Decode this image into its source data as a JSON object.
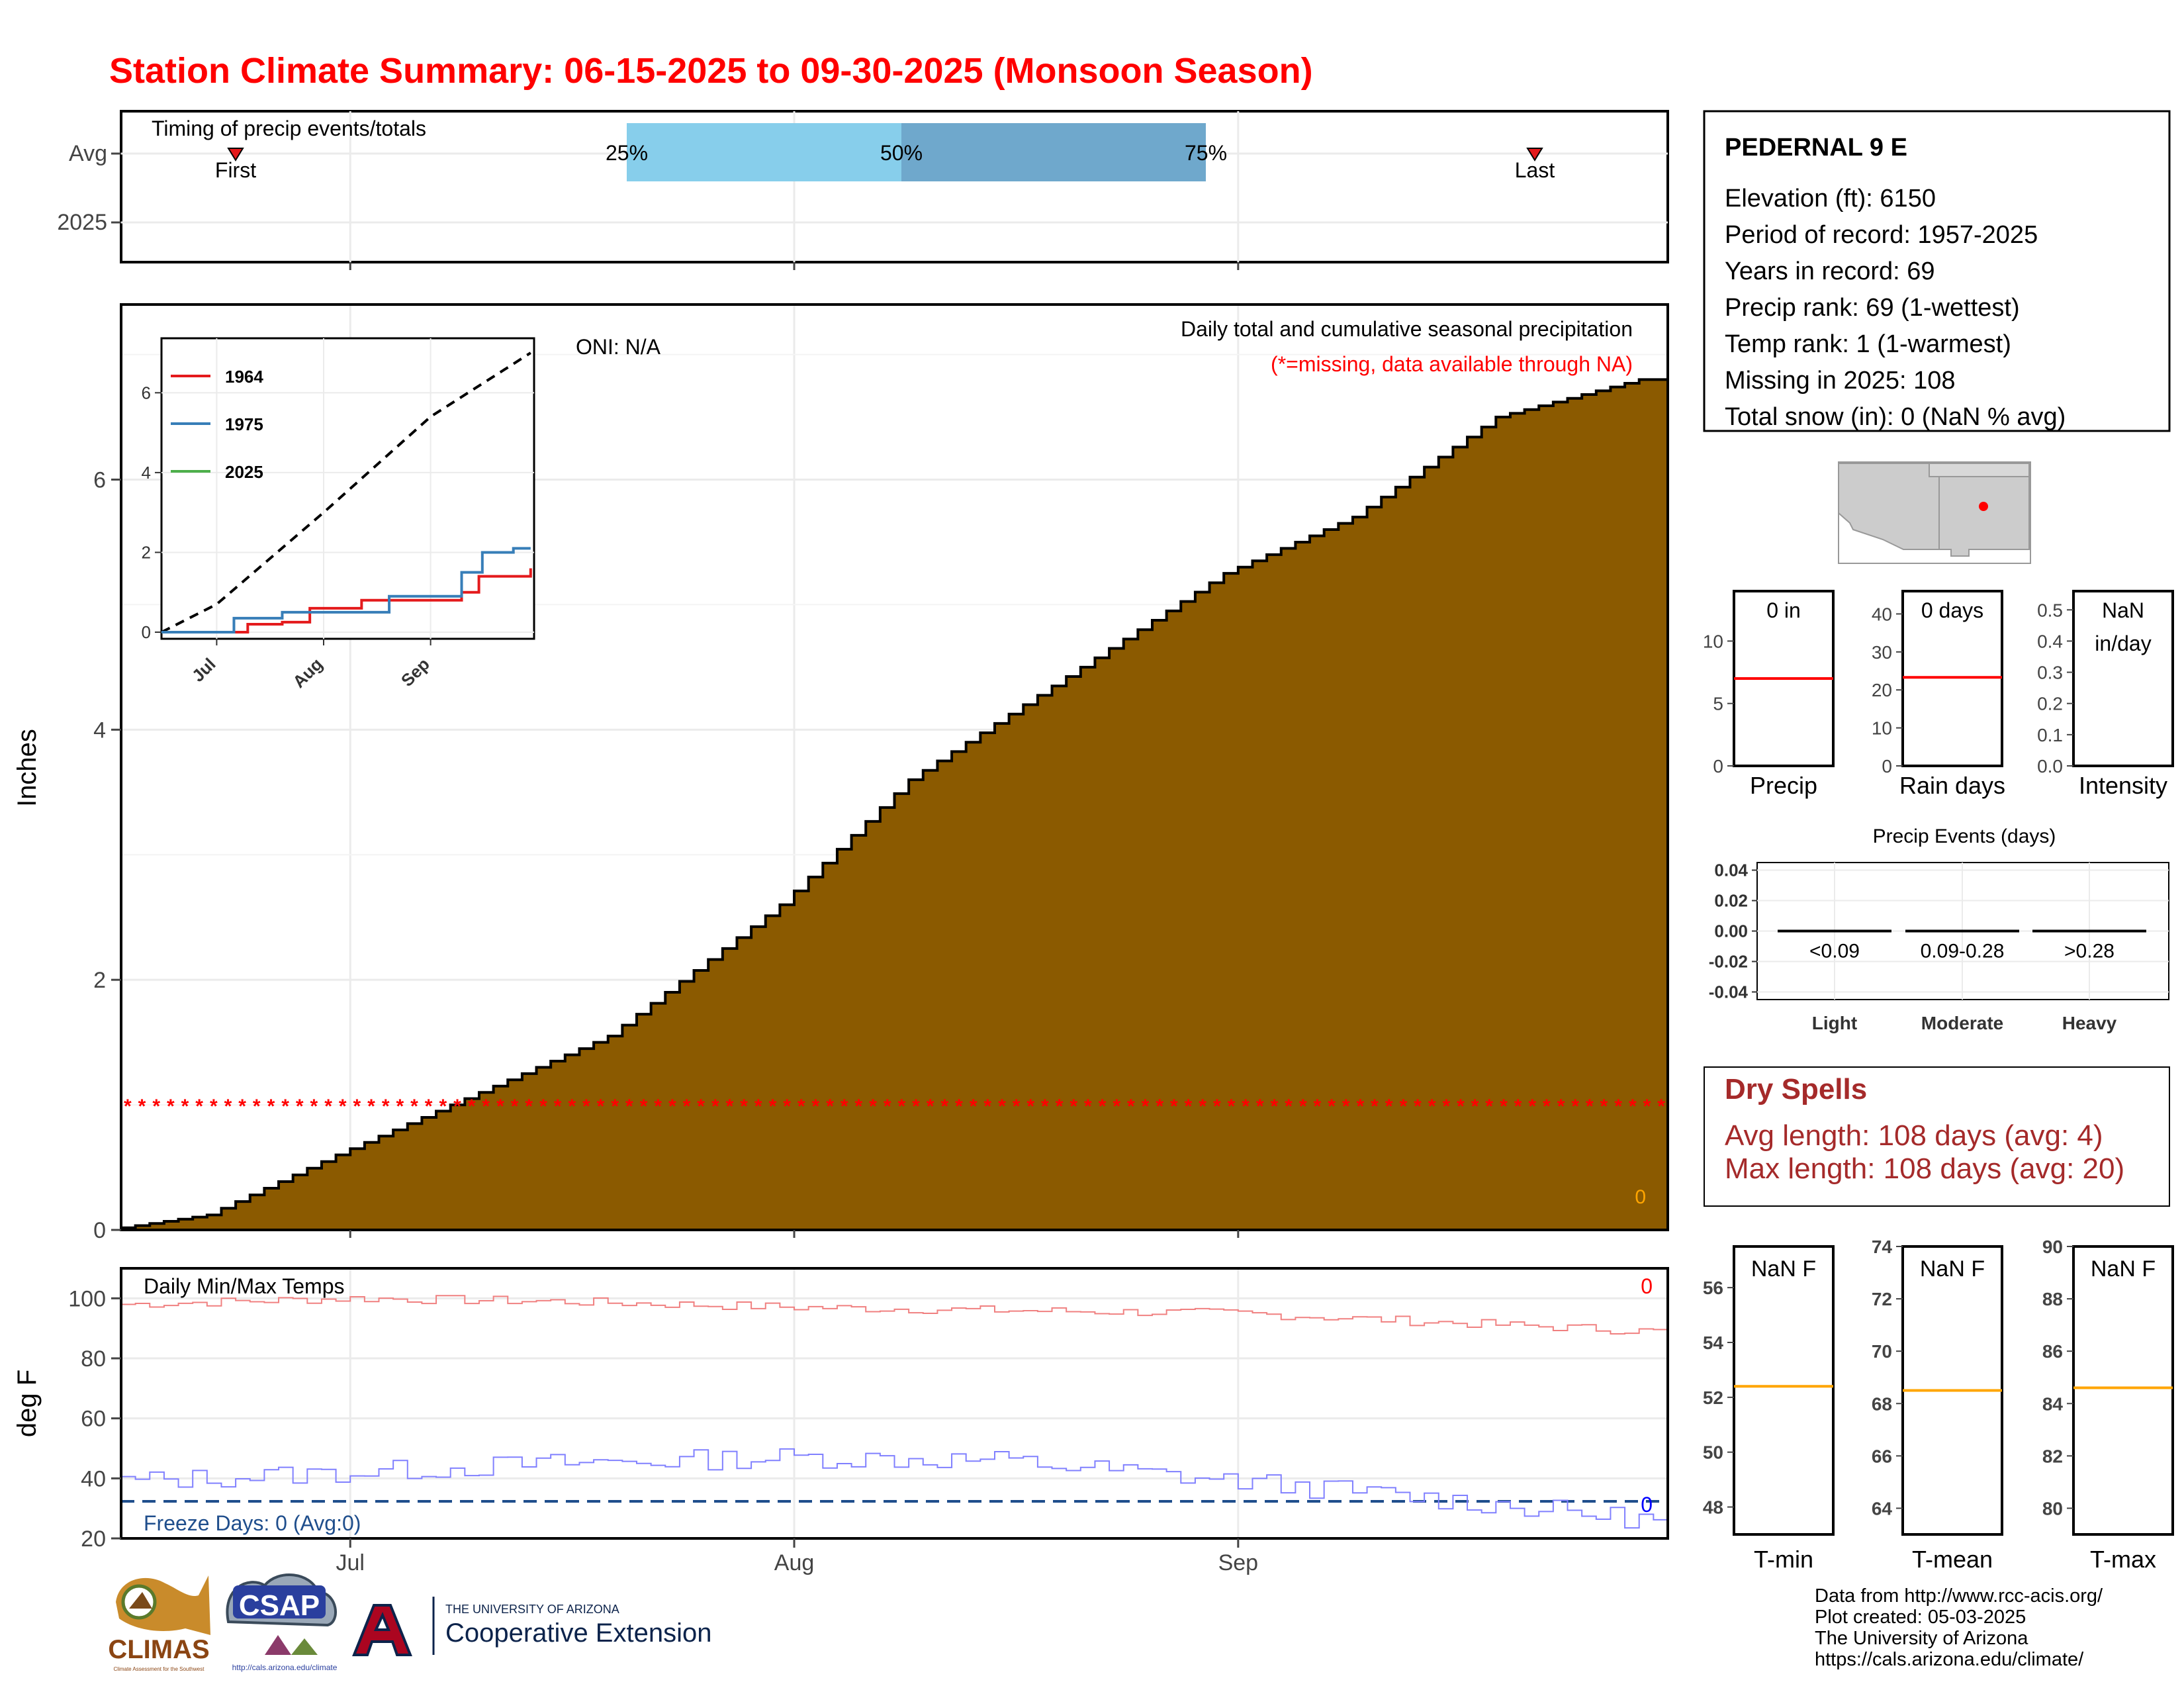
{
  "title": "Station Climate Summary: 06-15-2025 to 09-30-2025 (Monsoon Season)",
  "colors": {
    "title": "#ff0000",
    "cumulative_fill": "#8b5a00",
    "spell": "#a52a2a",
    "pct_light": "#87ceeb",
    "pct_dark": "#6fa8cc"
  },
  "station": {
    "name": "PEDERNAL 9 E",
    "lines": [
      "Elevation (ft): 6150",
      "Period of record: 1957-2025",
      "Years in record: 69",
      "Precip rank: 69 (1-wettest)",
      "Temp rank: 1 (1-warmest)",
      "Missing in 2025: 108",
      "Total snow (in): 0 (NaN % avg)"
    ]
  },
  "timing": {
    "label": "Timing of precip events/totals",
    "rows": [
      "Avg",
      "2025"
    ],
    "first_label": "First",
    "last_label": "Last",
    "pct_labels": [
      "25%",
      "50%",
      "75%"
    ]
  },
  "precip_panel": {
    "oni": "ONI: N/A",
    "subtitle": "Daily total and cumulative seasonal precipitation",
    "missing_note": "(*=missing, data available through NA)",
    "ylabel": "Inches",
    "yticks": [
      "0",
      "2",
      "4",
      "6"
    ],
    "corner_value": "0"
  },
  "inset": {
    "yticks": [
      "0",
      "2",
      "4",
      "6"
    ],
    "xticks": [
      "Jul",
      "Aug",
      "Sep"
    ],
    "legend": [
      {
        "name": "1964",
        "color": "#e41a1c"
      },
      {
        "name": "1975",
        "color": "#377eb8"
      },
      {
        "name": "2025",
        "color": "#4daf4a"
      }
    ]
  },
  "temp_panel": {
    "label": "Daily Min/Max Temps",
    "ylabel": "deg F",
    "yticks": [
      "20",
      "40",
      "60",
      "80",
      "100"
    ],
    "freeze_text": "Freeze Days: 0 (Avg:0)",
    "max_corner": "0",
    "min_corner": "0"
  },
  "xaxis": {
    "ticks": [
      "Jul",
      "Aug",
      "Sep"
    ]
  },
  "mini_bars": [
    {
      "value_text": "0 in",
      "label": "Precip",
      "yticks": [
        "0",
        "5",
        "10"
      ],
      "avg": 7.0
    },
    {
      "value_text": "0 days",
      "label": "Rain days",
      "yticks": [
        "0",
        "10",
        "20",
        "30",
        "40"
      ],
      "avg": 23.3
    },
    {
      "value_text": "NaN",
      "value_text2": "in/day",
      "label": "Intensity",
      "yticks": [
        "0.0",
        "0.1",
        "0.2",
        "0.3",
        "0.4",
        "0.5"
      ]
    }
  ],
  "events": {
    "title": "Precip Events (days)",
    "yticks": [
      "0.04",
      "0.02",
      "0.00",
      "-0.02",
      "-0.04"
    ],
    "categories": [
      "Light",
      "Moderate",
      "Heavy"
    ],
    "bin_labels": [
      "<0.09",
      "0.09-0.28",
      ">0.28"
    ]
  },
  "dry_spells": {
    "title": "Dry Spells",
    "avg_line": "Avg length: 108 days (avg: 4)",
    "max_line": "Max length: 108 days (avg: 20)"
  },
  "temp_bars": [
    {
      "value_text": "NaN F",
      "label": "T-min",
      "yticks": [
        "48",
        "50",
        "52",
        "54",
        "56"
      ],
      "avg": 52.4
    },
    {
      "value_text": "NaN F",
      "label": "T-mean",
      "yticks": [
        "64",
        "66",
        "68",
        "70",
        "72",
        "74"
      ],
      "avg": 68.5
    },
    {
      "value_text": "NaN F",
      "label": "T-max",
      "yticks": [
        "80",
        "82",
        "84",
        "86",
        "88",
        "90"
      ],
      "avg": 84.6
    }
  ],
  "footer": [
    "Data from http://www.rcc-acis.org/",
    "Plot created: 05-03-2025",
    "The University of Arizona",
    "https://cals.arizona.edu/climate/"
  ],
  "logos": {
    "climas": "CLIMAS",
    "climas_sub": "Climate Assessment for the Southwest",
    "csap": "CSAP",
    "csap_url": "http://cals.arizona.edu/climate",
    "ua_small": "THE UNIVERSITY OF ARIZONA",
    "ua_big": "Cooperative Extension"
  },
  "chart_data": [
    {
      "type": "area",
      "name": "cumulative_precip_avg",
      "x_start": "2025-06-15",
      "x_end": "2025-09-30",
      "xticks": [
        "Jul",
        "Aug",
        "Sep"
      ],
      "ylim": [
        0,
        7.4
      ],
      "ylabel": "Inches",
      "cumulative_checkpoints": [
        {
          "date": "06-15",
          "value": 0.0
        },
        {
          "date": "06-22",
          "value": 0.12
        },
        {
          "date": "07-01",
          "value": 0.6
        },
        {
          "date": "07-10",
          "value": 1.05
        },
        {
          "date": "07-20",
          "value": 1.55
        },
        {
          "date": "08-01",
          "value": 2.6
        },
        {
          "date": "08-10",
          "value": 3.6
        },
        {
          "date": "08-20",
          "value": 4.35
        },
        {
          "date": "09-01",
          "value": 5.25
        },
        {
          "date": "09-10",
          "value": 5.7
        },
        {
          "date": "09-20",
          "value": 6.5
        },
        {
          "date": "09-30",
          "value": 6.8
        }
      ],
      "missing_marker_level": 1.0
    },
    {
      "type": "line",
      "name": "inset_cumulative",
      "ylim": [
        0,
        7.2
      ],
      "series": [
        {
          "name": "avg",
          "style": "dashed",
          "points": [
            {
              "date": "06-15",
              "value": 0
            },
            {
              "date": "07-01",
              "value": 0.7
            },
            {
              "date": "08-01",
              "value": 3.0
            },
            {
              "date": "09-01",
              "value": 5.4
            },
            {
              "date": "09-30",
              "value": 7.0
            }
          ]
        },
        {
          "name": "1964",
          "points": [
            {
              "date": "06-15",
              "value": 0
            },
            {
              "date": "07-10",
              "value": 0.2
            },
            {
              "date": "07-20",
              "value": 0.25
            },
            {
              "date": "07-28",
              "value": 0.6
            },
            {
              "date": "08-12",
              "value": 0.8
            },
            {
              "date": "09-10",
              "value": 1.0
            },
            {
              "date": "09-15",
              "value": 1.4
            },
            {
              "date": "09-30",
              "value": 1.6
            }
          ]
        },
        {
          "name": "1975",
          "points": [
            {
              "date": "06-15",
              "value": 0
            },
            {
              "date": "07-06",
              "value": 0.35
            },
            {
              "date": "07-20",
              "value": 0.5
            },
            {
              "date": "08-20",
              "value": 0.9
            },
            {
              "date": "09-10",
              "value": 1.5
            },
            {
              "date": "09-16",
              "value": 2.0
            },
            {
              "date": "09-25",
              "value": 2.1
            },
            {
              "date": "09-30",
              "value": 2.1
            }
          ]
        },
        {
          "name": "2025",
          "points": []
        }
      ]
    },
    {
      "type": "line",
      "name": "daily_temps_avg",
      "ylim": [
        20,
        110
      ],
      "ylabel": "deg F",
      "series": [
        {
          "name": "max",
          "color": "#f08080",
          "points": [
            {
              "date": "06-15",
              "value": 98
            },
            {
              "date": "07-01",
              "value": 100
            },
            {
              "date": "07-15",
              "value": 99
            },
            {
              "date": "08-01",
              "value": 97
            },
            {
              "date": "08-15",
              "value": 96
            },
            {
              "date": "09-01",
              "value": 95
            },
            {
              "date": "09-15",
              "value": 92
            },
            {
              "date": "09-30",
              "value": 89
            }
          ]
        },
        {
          "name": "min",
          "color": "#8080ff",
          "points": [
            {
              "date": "06-15",
              "value": 39
            },
            {
              "date": "07-01",
              "value": 42
            },
            {
              "date": "07-15",
              "value": 45
            },
            {
              "date": "08-01",
              "value": 47
            },
            {
              "date": "08-15",
              "value": 46
            },
            {
              "date": "09-01",
              "value": 39
            },
            {
              "date": "09-15",
              "value": 33
            },
            {
              "date": "09-30",
              "value": 26
            }
          ]
        }
      ],
      "freeze_line": 32
    },
    {
      "type": "bar",
      "name": "precip_events",
      "categories": [
        "Light",
        "Moderate",
        "Heavy"
      ],
      "values": [
        0,
        0,
        0
      ],
      "ylim": [
        -0.045,
        0.045
      ]
    }
  ]
}
